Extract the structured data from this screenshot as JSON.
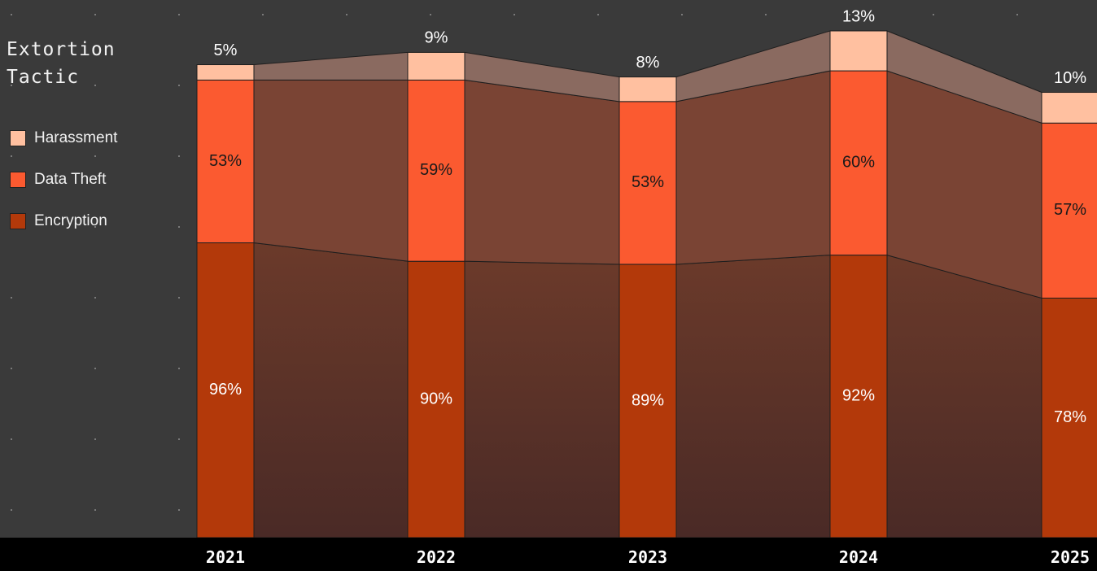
{
  "legend": {
    "title": "Extortion\nTactic",
    "items": [
      {
        "label": "Harassment",
        "color": "#ffc0a0"
      },
      {
        "label": "Data Theft",
        "color": "#fb5a30"
      },
      {
        "label": "Encryption",
        "color": "#b3390a"
      }
    ]
  },
  "colors": {
    "background": "#3a3a3a",
    "harassment": "#ffc0a0",
    "data_theft": "#fb5a30",
    "encryption": "#b3390a",
    "axis_band": "#000000"
  },
  "chart_data": {
    "type": "bar",
    "stacked": true,
    "categories": [
      "2021",
      "2022",
      "2023",
      "2024",
      "2025"
    ],
    "series": [
      {
        "name": "Encryption",
        "values": [
          96,
          90,
          89,
          92,
          78
        ]
      },
      {
        "name": "Data Theft",
        "values": [
          53,
          59,
          53,
          60,
          57
        ]
      },
      {
        "name": "Harassment",
        "values": [
          5,
          9,
          8,
          13,
          10
        ]
      }
    ],
    "value_suffix": "%",
    "ylim": [
      0,
      165
    ],
    "legend_position": "top-left",
    "grid": false,
    "connector_areas": true
  }
}
